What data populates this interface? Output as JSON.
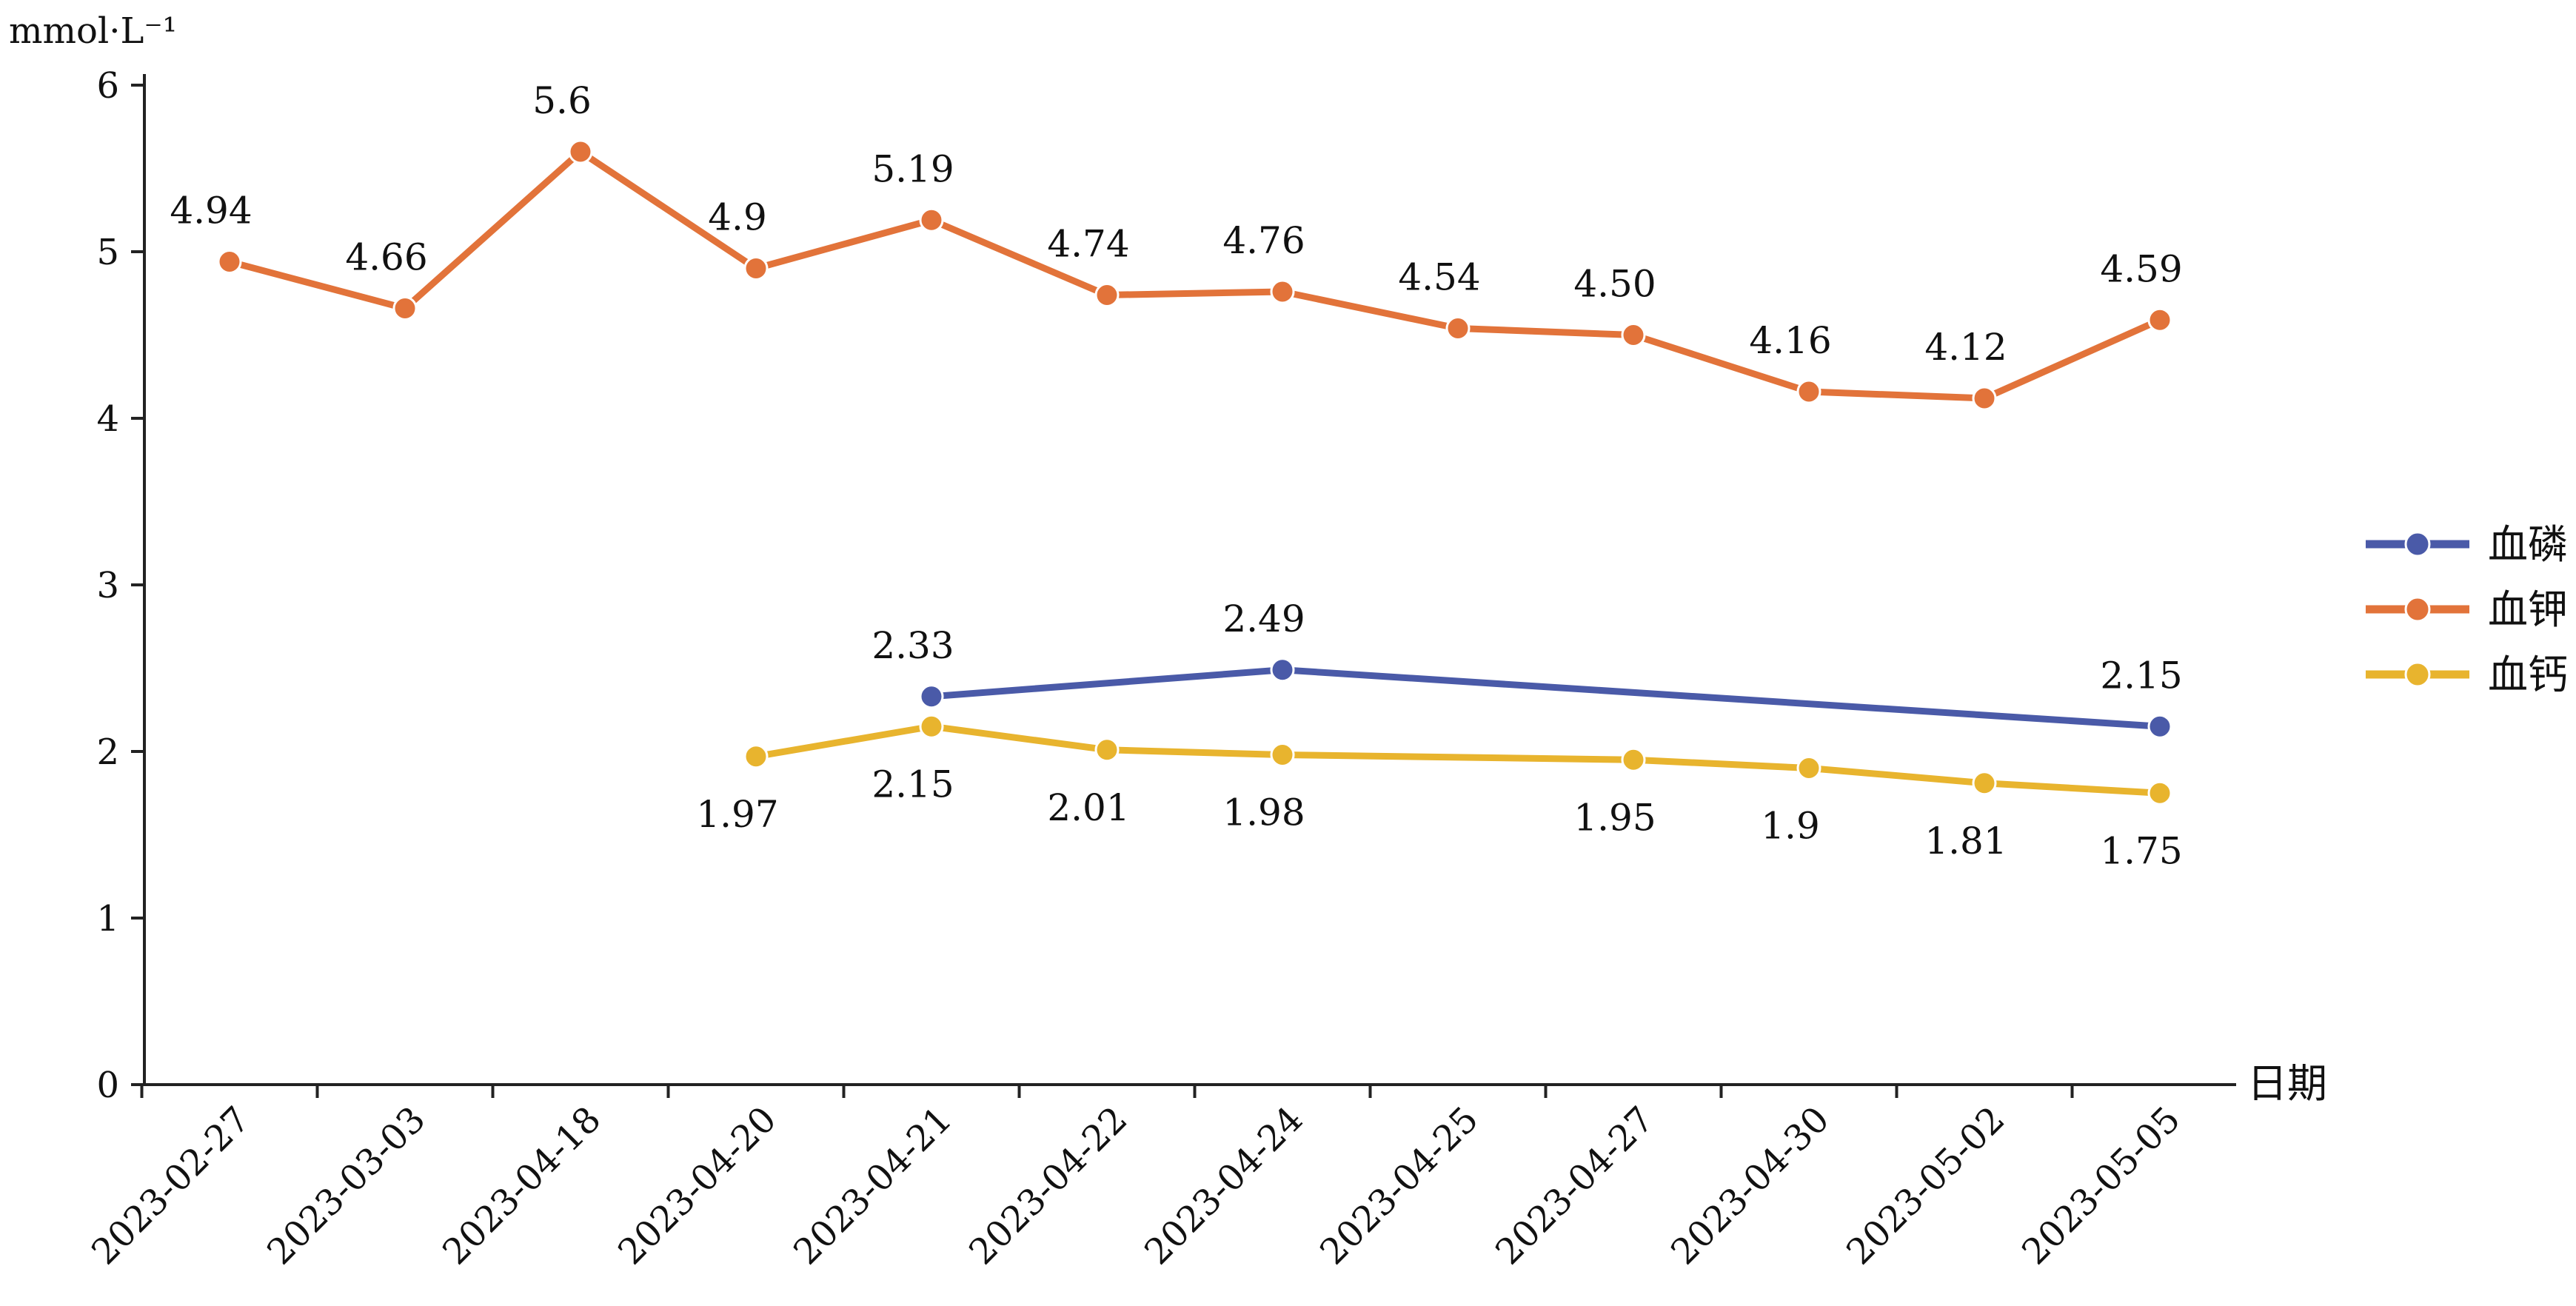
{
  "chart_data": {
    "type": "line",
    "title": "",
    "ylabel": "mmol·L⁻¹",
    "xlabel": "日期",
    "ylim": [
      0,
      6
    ],
    "yticks": [
      0,
      1,
      2,
      3,
      4,
      5,
      6
    ],
    "grid": false,
    "legend_placement": "right",
    "categories": [
      "2023-02-27",
      "2023-03-03",
      "2023-04-18",
      "2023-04-20",
      "2023-04-21",
      "2023-04-22",
      "2023-04-24",
      "2023-04-25",
      "2023-04-27",
      "2023-04-30",
      "2023-05-02",
      "2023-05-05"
    ],
    "series": [
      {
        "name": "血磷",
        "color": "#4a5aa8",
        "values": [
          null,
          null,
          null,
          null,
          2.33,
          null,
          2.49,
          null,
          null,
          null,
          null,
          2.15
        ],
        "labels": [
          null,
          null,
          null,
          null,
          "2.33",
          null,
          "2.49",
          null,
          null,
          null,
          null,
          "2.15"
        ],
        "label_position": "above"
      },
      {
        "name": "血钾",
        "color": "#e2733a",
        "values": [
          4.94,
          4.66,
          5.6,
          4.9,
          5.19,
          4.74,
          4.76,
          4.54,
          4.5,
          4.16,
          4.12,
          4.59
        ],
        "labels": [
          "4.94",
          "4.66",
          "5.6",
          "4.9",
          "5.19",
          "4.74",
          "4.76",
          "4.54",
          "4.50",
          "4.16",
          "4.12",
          "4.59"
        ],
        "label_position": "above"
      },
      {
        "name": "血钙",
        "color": "#e8b42e",
        "values": [
          null,
          null,
          null,
          1.97,
          2.15,
          2.01,
          1.98,
          null,
          1.95,
          1.9,
          1.81,
          1.75
        ],
        "labels": [
          null,
          null,
          null,
          "1.97",
          "2.15",
          "2.01",
          "1.98",
          null,
          "1.95",
          "1.9",
          "1.81",
          "1.75"
        ],
        "label_position": "below"
      }
    ]
  }
}
